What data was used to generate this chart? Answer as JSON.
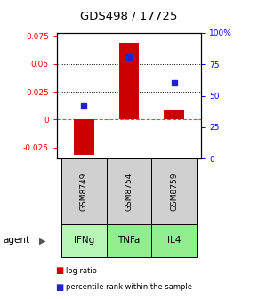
{
  "title": "GDS498 / 17725",
  "samples": [
    "GSM8749",
    "GSM8754",
    "GSM8759"
  ],
  "agents": [
    "IFNg",
    "TNFa",
    "IL4"
  ],
  "log_ratios": [
    -0.032,
    0.069,
    0.008
  ],
  "percentile_ranks": [
    0.42,
    0.81,
    0.6
  ],
  "ylim_left": [
    -0.035,
    0.078
  ],
  "ylim_right": [
    0,
    1.0
  ],
  "y_ticks_left": [
    -0.025,
    0,
    0.025,
    0.05,
    0.075
  ],
  "y_ticks_right": [
    0,
    0.25,
    0.5,
    0.75,
    1.0
  ],
  "y_tick_labels_right": [
    "0",
    "25",
    "50",
    "75",
    "100%"
  ],
  "dotted_lines": [
    0.025,
    0.05
  ],
  "bar_color": "#cc0000",
  "dot_color": "#2222cc",
  "agent_colors": [
    "#b8f5b8",
    "#90ee90",
    "#90ee90"
  ],
  "sample_bg_color": "#d0d0d0",
  "legend_bar_label": "log ratio",
  "legend_dot_label": "percentile rank within the sample",
  "bar_width": 0.45,
  "agent_label": "agent"
}
